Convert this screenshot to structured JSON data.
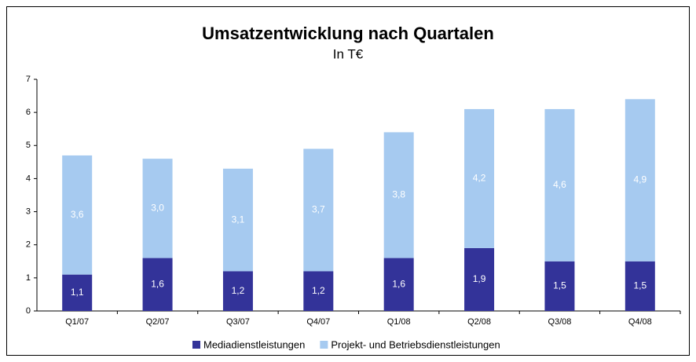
{
  "chart_data": {
    "type": "stacked_bar",
    "title": "Umsatzentwicklung nach Quartalen",
    "subtitle": "In T€",
    "categories": [
      "Q1/07",
      "Q2/07",
      "Q3/07",
      "Q4/07",
      "Q1/08",
      "Q2/08",
      "Q3/08",
      "Q4/08"
    ],
    "series": [
      {
        "name": "Mediadienstleistungen",
        "color": "#333399",
        "values": [
          1.1,
          1.6,
          1.2,
          1.2,
          1.6,
          1.9,
          1.5,
          1.5
        ],
        "value_labels": [
          "1,1",
          "1,6",
          "1,2",
          "1,2",
          "1,6",
          "1,9",
          "1,5",
          "1,5"
        ]
      },
      {
        "name": "Projekt- und Betriebsdienstleistungen",
        "color": "#a6caf0",
        "values": [
          3.6,
          3.0,
          3.1,
          3.7,
          3.8,
          4.2,
          4.6,
          4.9
        ],
        "value_labels": [
          "3,6",
          "3,0",
          "3,1",
          "3,7",
          "3,8",
          "4,2",
          "4,6",
          "4,9"
        ]
      }
    ],
    "ylim": [
      0,
      7
    ],
    "yticks": [
      0,
      1,
      2,
      3,
      4,
      5,
      6,
      7
    ],
    "grid": false,
    "legend": "bottom"
  }
}
